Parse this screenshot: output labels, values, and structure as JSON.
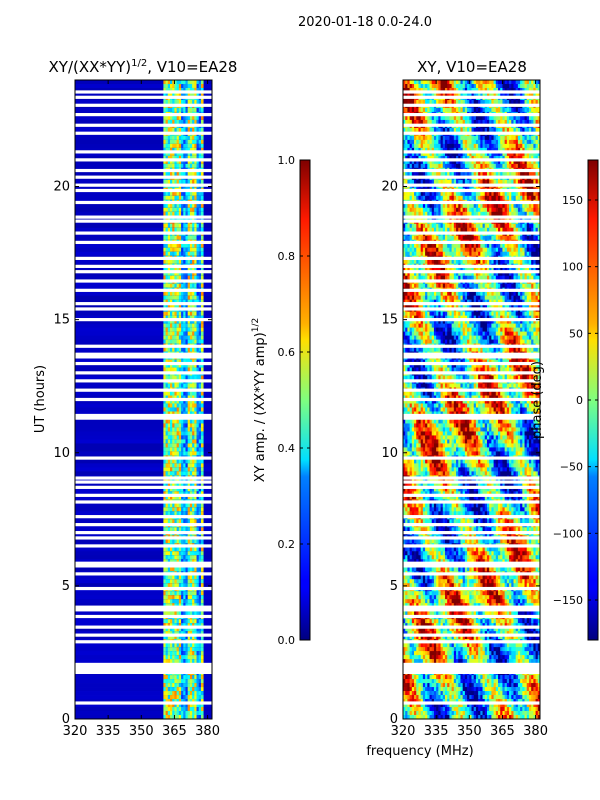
{
  "figure": {
    "suptitle": "2020-01-18 0.0-24.0"
  },
  "chart_data": [
    {
      "type": "heatmap",
      "title_base": "XY/(XX*YY)",
      "title_exp": "1/2",
      "title_suffix": ", V10=EA28",
      "xlabel": "",
      "ylabel": "UT (hours)",
      "xlim": [
        320,
        382
      ],
      "ylim": [
        0,
        24
      ],
      "xticks": [
        320,
        335,
        350,
        365,
        380
      ],
      "yticks": [
        0,
        5,
        10,
        15,
        20
      ],
      "colorbar": {
        "label_base": "XY amp. / (XX*YY amp)",
        "label_exp": "1/2",
        "range": [
          0.0,
          1.0
        ],
        "ticks": [
          0.0,
          0.2,
          0.4,
          0.6,
          0.8,
          1.0
        ],
        "tick_labels": [
          "0.0",
          "0.2",
          "0.4",
          "0.6",
          "0.8",
          "1.0"
        ],
        "colormap": "jet"
      },
      "description_values": {
        "background_level": 0.05,
        "active_band_mhz": [
          360,
          378
        ],
        "active_level_range": [
          0.3,
          0.75
        ]
      }
    },
    {
      "type": "heatmap",
      "title": "XY, V10=EA28",
      "xlabel": "frequency (MHz)",
      "ylabel": "",
      "xlim": [
        320,
        382
      ],
      "ylim": [
        0,
        24
      ],
      "xticks": [
        320,
        335,
        350,
        365,
        380
      ],
      "yticks": [
        0,
        5,
        10,
        15,
        20
      ],
      "colorbar": {
        "label": "phase (deg)",
        "range": [
          -180,
          180
        ],
        "ticks": [
          -150,
          -100,
          -50,
          0,
          50,
          100,
          150
        ],
        "tick_labels": [
          "−150",
          "−100",
          "−50",
          "0",
          "50",
          "100",
          "150"
        ],
        "colormap": "jet"
      }
    }
  ],
  "flagged_rows_ut": [
    0.6,
    1.75,
    1.85,
    1.95,
    2.05,
    2.9,
    3.15,
    3.45,
    3.85,
    4.1,
    4.2,
    4.9,
    5.45,
    5.75,
    5.85,
    6.5,
    6.8,
    7.0,
    7.3,
    7.6,
    8.15,
    8.4,
    8.7,
    8.9,
    9.05,
    9.8,
    11.3,
    11.4,
    12.0,
    12.35,
    12.7,
    13.0,
    13.35,
    13.6,
    13.7,
    14.0,
    15.0,
    15.4,
    15.6,
    16.1,
    16.45,
    16.8,
    17.0,
    17.3,
    17.9,
    18.25,
    18.7,
    18.85,
    19.4,
    19.85,
    20.05,
    20.35,
    20.6,
    21.0,
    21.3,
    22.0,
    22.3,
    22.7,
    23.05,
    23.35,
    23.55
  ]
}
